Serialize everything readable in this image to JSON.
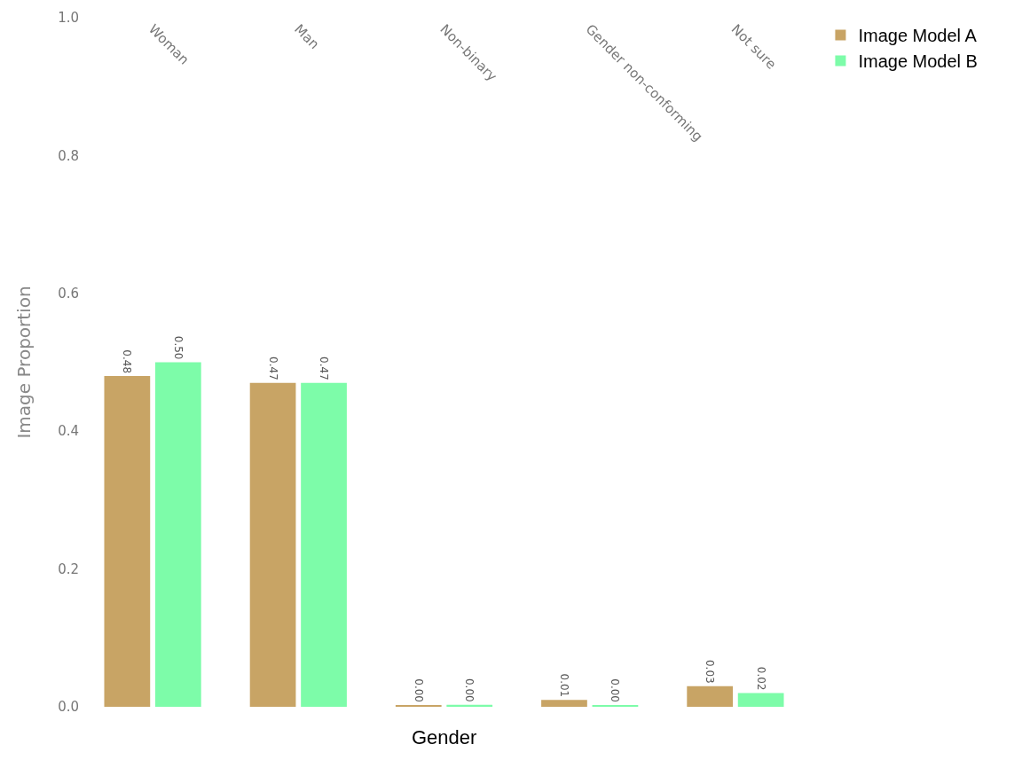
{
  "chart_data": {
    "type": "bar",
    "xlabel": "Gender",
    "ylabel": "Image Proportion",
    "categories": [
      "Woman",
      "Man",
      "Non-binary",
      "Gender non-conforming",
      "Not sure"
    ],
    "series": [
      {
        "name": "Image Model A",
        "color": "#c8a465",
        "values": [
          0.48,
          0.47,
          0.002,
          0.01,
          0.03
        ],
        "value_labels": [
          "0.48",
          "0.47",
          "0.00",
          "0.01",
          "0.03"
        ]
      },
      {
        "name": "Image Model B",
        "color": "#7dfca9",
        "values": [
          0.5,
          0.47,
          0.003,
          0.002,
          0.02
        ],
        "value_labels": [
          "0.50",
          "0.47",
          "0.00",
          "0.00",
          "0.02"
        ]
      }
    ],
    "ylim": [
      0,
      1
    ],
    "yticks": [
      {
        "value": 0,
        "label": "0.0"
      },
      {
        "value": 0.2,
        "label": "0.2"
      },
      {
        "value": 0.4,
        "label": "0.4"
      },
      {
        "value": 0.6,
        "label": "0.6"
      },
      {
        "value": 0.8,
        "label": "0.8"
      },
      {
        "value": 1,
        "label": "1.0"
      }
    ],
    "grid": false,
    "legend": "top right"
  }
}
